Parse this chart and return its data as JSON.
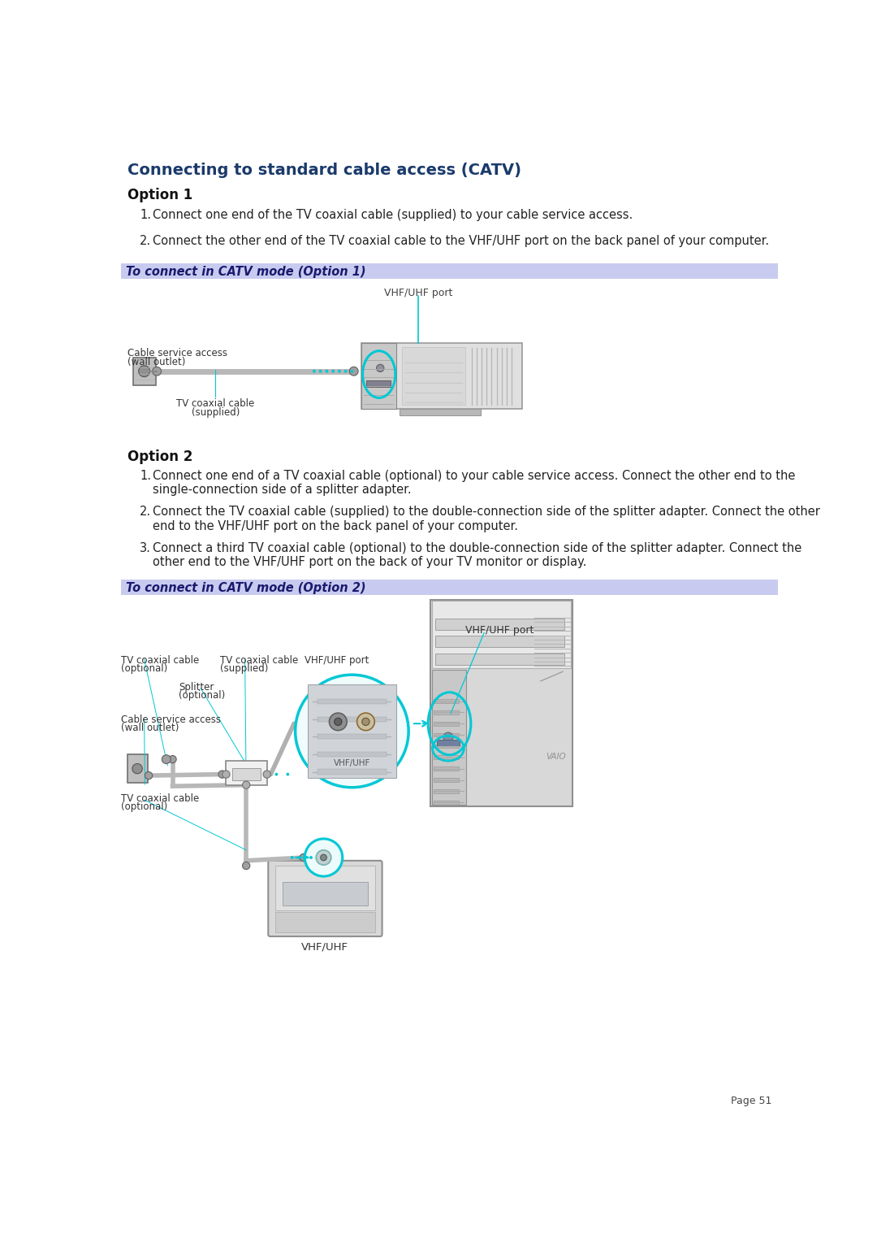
{
  "title": "Connecting to standard cable access (CATV)",
  "title_color": "#1a3a6b",
  "bg_color": "#ffffff",
  "option1_header": "Option 1",
  "option1_items": [
    "Connect one end of the TV coaxial cable (supplied) to your cable service access.",
    "Connect the other end of the TV coaxial cable to the VHF/UHF port on the back panel of your computer."
  ],
  "catv_bar1_text": "To connect in CATV mode (Option 1)",
  "catv_bar1_color": "#c8cbef",
  "option2_header": "Option 2",
  "option2_items": [
    "Connect one end of a TV coaxial cable (optional) to your cable service access. Connect the other end to the\nsingle-connection side of a splitter adapter.",
    "Connect the TV coaxial cable (supplied) to the double-connection side of the splitter adapter. Connect the other\nend to the VHF/UHF port on the back panel of your computer.",
    "Connect a third TV coaxial cable (optional) to the double-connection side of the splitter adapter. Connect the\nother end to the VHF/UHF port on the back of your TV monitor or display."
  ],
  "catv_bar2_text": "To connect in CATV mode (Option 2)",
  "catv_bar2_color": "#c8cbef",
  "page_footer": "Page 51",
  "cyan_color": "#00c8d4",
  "gray_light": "#d8d8d8",
  "gray_med": "#b0b0b0",
  "gray_dark": "#888888",
  "diagram1": {
    "vhf_uhf_label": "VHF/UHF port",
    "cable_label1a": "Cable service access",
    "cable_label1b": "(wall outlet)",
    "cable_label2a": "TV coaxial cable",
    "cable_label2b": "(supplied)"
  },
  "diagram2": {
    "label_tv_coax_opt_a": "TV coaxial cable",
    "label_tv_coax_opt_b": "(optional)",
    "label_tv_coax_sup_a": "TV coaxial cable",
    "label_tv_coax_sup_b": "(supplied)",
    "label_vhf_uhf_port": "VHF/UHF port",
    "label_splitter_a": "Splitter",
    "label_splitter_b": "(optional)",
    "label_cable_svc_a": "Cable service access",
    "label_cable_svc_b": "(wall outlet)",
    "label_tv_coax_opt2_a": "TV coaxial cable",
    "label_tv_coax_opt2_b": "(optional)",
    "label_vhf_uhf": "VHF/UHF"
  }
}
